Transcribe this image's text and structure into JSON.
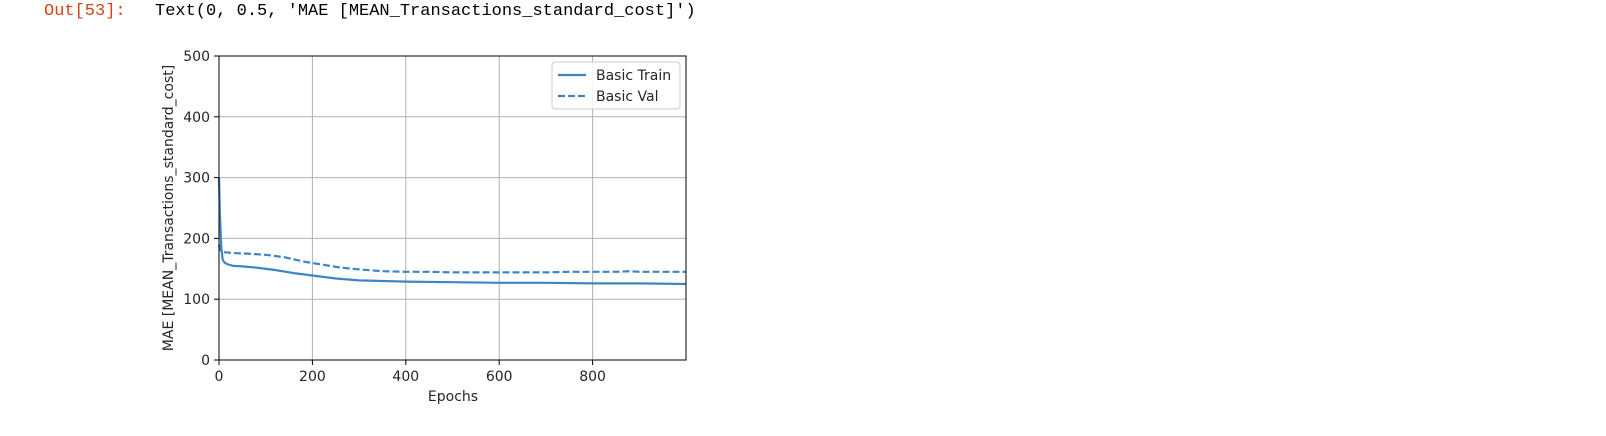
{
  "cell": {
    "prompt": "Out[53]:",
    "output_text": "Text(0, 0.5, 'MAE [MEAN_Transactions_standard_cost]')"
  },
  "colors": {
    "series": "#3d86c6",
    "grid": "#b0b0b0",
    "prompt": "#d84315"
  },
  "chart_data": {
    "type": "line",
    "title": "",
    "xlabel": "Epochs",
    "ylabel": "MAE [MEAN_Transactions_standard_cost]",
    "xlim": [
      0,
      1000
    ],
    "ylim": [
      0,
      500
    ],
    "xticks": [
      0,
      200,
      400,
      600,
      800
    ],
    "yticks": [
      0,
      100,
      200,
      300,
      400,
      500
    ],
    "grid": true,
    "legend_position": "top-right",
    "series": [
      {
        "name": "Basic Train",
        "style": "solid",
        "x": [
          0,
          2,
          5,
          8,
          12,
          20,
          30,
          50,
          80,
          120,
          160,
          200,
          250,
          300,
          350,
          400,
          500,
          600,
          700,
          800,
          900,
          999
        ],
        "y": [
          300,
          240,
          185,
          165,
          160,
          157,
          155,
          154,
          152,
          148,
          143,
          139,
          134,
          131,
          130,
          129,
          128,
          127,
          127,
          126,
          126,
          125
        ]
      },
      {
        "name": "Basic Val",
        "style": "dashed",
        "x": [
          0,
          2,
          4,
          8,
          15,
          30,
          60,
          100,
          140,
          180,
          220,
          260,
          300,
          350,
          400,
          450,
          500,
          550,
          600,
          650,
          700,
          750,
          800,
          850,
          880,
          900,
          950,
          999
        ],
        "y": [
          190,
          182,
          180,
          178,
          177,
          176,
          175,
          173,
          169,
          162,
          157,
          152,
          149,
          146,
          145,
          145,
          144,
          144,
          144,
          144,
          144,
          145,
          145,
          145,
          146,
          145,
          145,
          145
        ]
      }
    ]
  }
}
